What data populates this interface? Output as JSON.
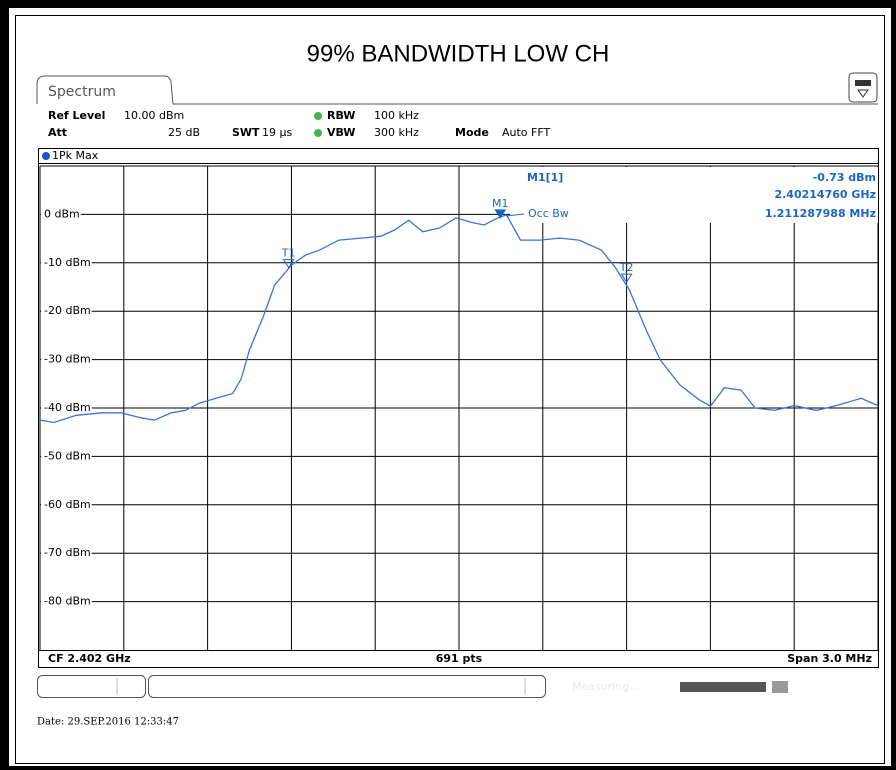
{
  "chart_data": {
    "type": "line",
    "title": "99% BANDWIDTH LOW CH",
    "x": [
      2.4005,
      2.40055,
      2.40063,
      2.40072,
      2.40079,
      2.40086,
      2.40091,
      2.40097,
      2.40102,
      2.40107,
      2.40113,
      2.40119,
      2.40122,
      2.40125,
      2.4013,
      2.40134,
      2.4014,
      2.40145,
      2.4015,
      2.40157,
      2.40165,
      2.40172,
      2.40177,
      2.40182,
      2.40187,
      2.40193,
      2.40199,
      2.40204,
      2.40209,
      2.40214,
      2.40217,
      2.40222,
      2.40229,
      2.40236,
      2.40243,
      2.40251,
      2.40256,
      2.40261,
      2.40267,
      2.40272,
      2.40279,
      2.40286,
      2.4029,
      2.40295,
      2.40301,
      2.40306,
      2.40313,
      2.4032,
      2.40328,
      2.40335,
      2.40344,
      2.4035
    ],
    "series": [
      {
        "name": "1Pk Max",
        "color": "#3b73d9",
        "values": [
          -42.5,
          -43,
          -41.5,
          -41,
          -41,
          -42,
          -42.5,
          -41,
          -40.5,
          -39,
          -38,
          -37,
          -34,
          -28,
          -21,
          -14.6,
          -10.5,
          -8.4,
          -7.4,
          -5.3,
          -4.9,
          -4.5,
          -3.2,
          -1.2,
          -3.6,
          -2.8,
          -0.7,
          -1.6,
          -2.2,
          -0.7,
          -0.1,
          -5.3,
          -5.3,
          -4.9,
          -5.3,
          -7.4,
          -11,
          -15.6,
          -23.9,
          -30,
          -35.2,
          -38.3,
          -39.6,
          -35.8,
          -36.3,
          -40,
          -40.5,
          -39.5,
          -40.5,
          -39.5,
          -38,
          -39.5
        ]
      }
    ],
    "xlim": [
      2.4005,
      2.4035
    ],
    "xticks": [
      2.4005,
      2.4008,
      2.4011,
      2.4014,
      2.4017,
      2.402,
      2.4023,
      2.4026,
      2.4029,
      2.4032,
      2.4035
    ],
    "ylim": [
      -90,
      10
    ],
    "yticks": [
      {
        "value": 0,
        "label": "0 dBm"
      },
      {
        "value": -10,
        "label": "-10 dBm"
      },
      {
        "value": -20,
        "label": "-20 dBm"
      },
      {
        "value": -30,
        "label": "-30 dBm"
      },
      {
        "value": -40,
        "label": "-40 dBm"
      },
      {
        "value": -50,
        "label": "-50 dBm"
      },
      {
        "value": -60,
        "label": "-60 dBm"
      },
      {
        "value": -70,
        "label": "-70 dBm"
      },
      {
        "value": -80,
        "label": "-80 dBm"
      }
    ],
    "grid": true,
    "markers": [
      {
        "label": "M1",
        "x": 2.4021476,
        "y": -0.73,
        "x_label": "2.40214760 GHz",
        "y_label": "-0.73 dBm"
      },
      {
        "label": "T1",
        "x": 2.40139,
        "y": -11
      },
      {
        "label": "T2",
        "x": 2.4026,
        "y": -14
      }
    ],
    "readout": {
      "name": "M1[1]",
      "function": "Occ Bw",
      "result": "1.211287988 MHz"
    }
  },
  "tab": "Spectrum",
  "settings": [
    {
      "label": "Ref Level",
      "value": "10.00 dBm"
    },
    {
      "label": "Att",
      "value": "25 dB"
    },
    {
      "label": "SWT",
      "value": "19 µs"
    },
    {
      "label": "RBW",
      "value": "100 kHz"
    },
    {
      "label": "VBW",
      "value": "300 kHz"
    },
    {
      "label": "Mode",
      "value": "Auto FFT"
    }
  ],
  "footer": {
    "center": "CF 2.402 GHz",
    "points": "691 pts",
    "span": "Span 3.0 MHz"
  },
  "status": "Measuring...",
  "date": "Date: 29.SEP.2016 12:33:47"
}
